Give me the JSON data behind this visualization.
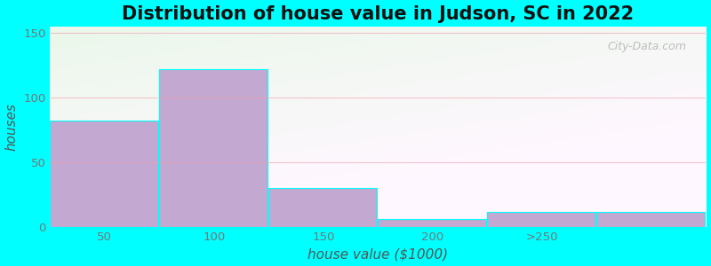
{
  "title": "Distribution of house value in Judson, SC in 2022",
  "xlabel": "house value ($1000)",
  "ylabel": "houses",
  "bar_values": [
    82,
    122,
    30,
    6,
    12,
    12
  ],
  "bar_left_edges": [
    12.5,
    62.5,
    112.5,
    162.5,
    212.5,
    262.5
  ],
  "bar_width": 49.5,
  "bar_color": "#C3A8D1",
  "xtick_labels": [
    "50",
    "100",
    "150",
    "200",
    ">250",
    ""
  ],
  "ytick_positions": [
    0,
    50,
    100,
    150
  ],
  "ytick_labels": [
    "0",
    "50",
    "100",
    "150"
  ],
  "ylim": [
    0,
    155
  ],
  "xlim": [
    12.5,
    312.5
  ],
  "bg_color_outer": "#00FFFF",
  "grid_color": "#F0A0B0",
  "grid_alpha": 0.6,
  "title_fontsize": 15,
  "axis_label_fontsize": 11,
  "tick_label_color": "#777777",
  "axis_label_color": "#555555",
  "title_color": "#111111",
  "watermark_text": "City-Data.com",
  "watermark_color": "#AAAAAA"
}
